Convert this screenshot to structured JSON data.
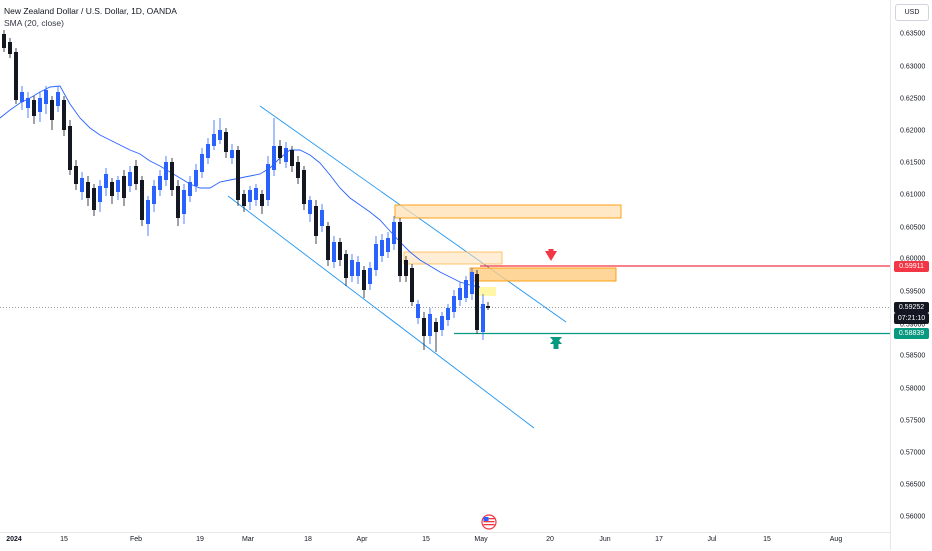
{
  "header": {
    "title": "New Zealand Dollar / U.S. Dollar, 1D, OANDA",
    "indicator": "SMA (20, close)",
    "currency": "USD"
  },
  "price_axis": {
    "ticks": [
      "0.63500",
      "0.63000",
      "0.62500",
      "0.62000",
      "0.61500",
      "0.61000",
      "0.60500",
      "0.60000",
      "0.59500",
      "0.59000",
      "0.58500",
      "0.58000",
      "0.57500",
      "0.57000",
      "0.56500",
      "0.56000"
    ],
    "red_level": "0.59911",
    "current_price": "0.59252",
    "countdown": "07:21:10",
    "green_level": "0.58839"
  },
  "time_axis": {
    "labels": [
      "2024",
      "15",
      "Feb",
      "19",
      "Mar",
      "18",
      "Apr",
      "15",
      "May",
      "20",
      "Jun",
      "17",
      "Jul",
      "15",
      "Aug"
    ]
  },
  "colors": {
    "up_candle": "#2962ff",
    "down_candle": "#131722",
    "sma": "#2962ff",
    "channel": "#2196f3",
    "resistance": "#f23645",
    "support": "#089981",
    "zone_fill": "#ffe0b2",
    "zone_border": "#ff9800",
    "yellow_zone": "#fff59d"
  },
  "icons": {
    "down_arrow": "arrow-down-icon",
    "up_arrow": "arrow-up-icon",
    "flag": "us-flag-icon"
  }
}
